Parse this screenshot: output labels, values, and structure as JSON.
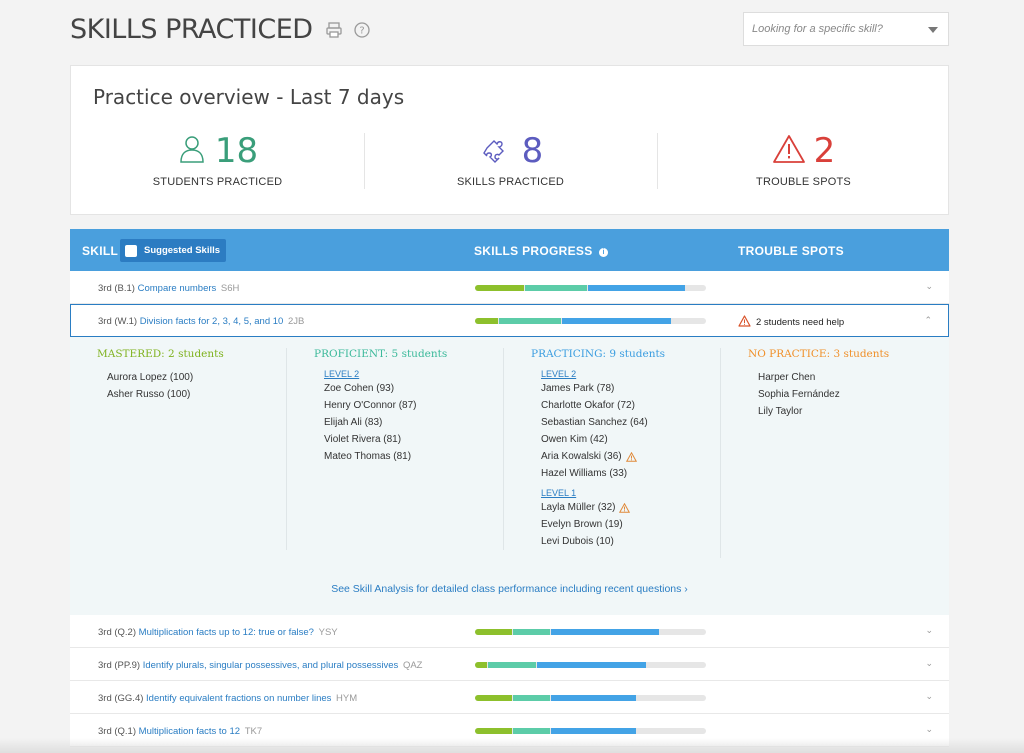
{
  "header": {
    "title": "SKILLS PRACTICED",
    "search_placeholder": "Looking for a specific skill?"
  },
  "overview": {
    "title": "Practice overview - Last 7 days",
    "stats": [
      {
        "value": "18",
        "label": "STUDENTS PRACTICED",
        "color": "#3a9e7a"
      },
      {
        "value": "8",
        "label": "SKILLS PRACTICED",
        "color": "#5c5cbf"
      },
      {
        "value": "2",
        "label": "TROUBLE SPOTS",
        "color": "#d9403a"
      }
    ]
  },
  "table": {
    "col_skill": "SKILL",
    "suggested_label": "Suggested Skills",
    "col_progress": "SKILLS PROGRESS",
    "col_trouble": "TROUBLE SPOTS"
  },
  "rows": [
    {
      "grade": "3rd (B.1)",
      "name": "Compare numbers",
      "code": "S6H",
      "progress": {
        "mastered": 0.21,
        "proficient": 0.27,
        "practicing": 0.42
      }
    },
    {
      "grade": "3rd (W.1)",
      "name": "Division facts for 2, 3, 4, 5, and 10",
      "code": "2JB",
      "trouble": "2 students need help",
      "progress": {
        "mastered": 0.1,
        "proficient": 0.27,
        "practicing": 0.47
      }
    },
    {
      "grade": "3rd (Q.2)",
      "name": "Multiplication facts up to 12: true or false?",
      "code": "YSY",
      "progress": {
        "mastered": 0.16,
        "proficient": 0.16,
        "practicing": 0.47
      }
    },
    {
      "grade": "3rd (PP.9)",
      "name": "Identify plurals, singular possessives, and plural possessives",
      "code": "QAZ",
      "progress": {
        "mastered": 0.05,
        "proficient": 0.21,
        "practicing": 0.47
      }
    },
    {
      "grade": "3rd (GG.4)",
      "name": "Identify equivalent fractions on number lines",
      "code": "HYM",
      "progress": {
        "mastered": 0.16,
        "proficient": 0.16,
        "practicing": 0.37
      }
    },
    {
      "grade": "3rd (Q.1)",
      "name": "Multiplication facts to 12",
      "code": "TK7",
      "progress": {
        "mastered": 0.16,
        "proficient": 0.16,
        "practicing": 0.37
      }
    }
  ],
  "detail": {
    "mastered": {
      "title": "MASTERED: 2 students",
      "color": "#7fb21e",
      "students": [
        "Aurora Lopez (100)",
        "Asher Russo (100)"
      ]
    },
    "proficient": {
      "title": "PROFICIENT: 5 students",
      "color": "#3bb99a",
      "level": "LEVEL 2",
      "students": [
        "Zoe Cohen (93)",
        "Henry O'Connor (87)",
        "Elijah Ali (83)",
        "Violet Rivera (81)",
        "Mateo Thomas (81)"
      ]
    },
    "practicing": {
      "title": "PRACTICING: 9 students",
      "color": "#3a9de0",
      "level2": "LEVEL 2",
      "level2_students": [
        "James Park (78)",
        "Charlotte Okafor (72)",
        "Sebastian Sanchez (64)",
        "Owen Kim (42)",
        "Aria Kowalski (36)",
        "Hazel Williams (33)"
      ],
      "level1": "LEVEL 1",
      "level1_students": [
        "Layla Müller (32)",
        "Evelyn Brown (19)",
        "Levi Dubois (10)"
      ]
    },
    "no_practice": {
      "title": "NO PRACTICE: 3 students",
      "color": "#f0902a",
      "students": [
        "Harper Chen",
        "Sophia Fernández",
        "Lily Taylor"
      ]
    },
    "analysis_link": "See Skill Analysis for detailed class performance including recent questions"
  }
}
